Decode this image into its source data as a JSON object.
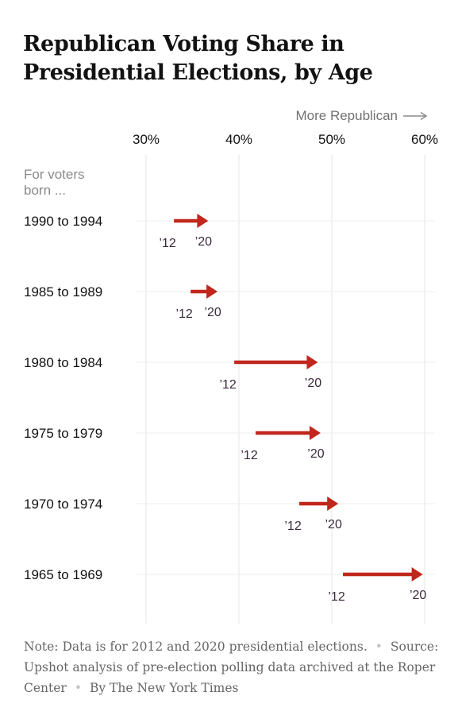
{
  "title": "Republican Voting Share in Presidential Elections, by Age",
  "direction_label": "More Republican",
  "subhead": "For voters born ...",
  "colors": {
    "arrow": "#c1271c",
    "grid": "#e6e6e6",
    "text": "#121212",
    "muted": "#727272"
  },
  "chart_data": {
    "type": "arrow",
    "x_ticks": [
      {
        "value": 30,
        "label": "30%"
      },
      {
        "value": 40,
        "label": "40%"
      },
      {
        "value": 50,
        "label": "50%"
      },
      {
        "value": 60,
        "label": "60%"
      }
    ],
    "xlim": [
      30,
      60
    ],
    "grid": true,
    "start_label": "’12",
    "end_label": "’20",
    "rows": [
      {
        "label": "1990 to 1994",
        "y2012": 33,
        "y2020": 36.7
      },
      {
        "label": "1985 to 1989",
        "y2012": 34.8,
        "y2020": 37.7
      },
      {
        "label": "1980 to 1984",
        "y2012": 39.5,
        "y2020": 48.5
      },
      {
        "label": "1975 to 1979",
        "y2012": 41.8,
        "y2020": 48.8
      },
      {
        "label": "1970 to 1974",
        "y2012": 46.5,
        "y2020": 50.7
      },
      {
        "label": "1965 to 1969",
        "y2012": 51.2,
        "y2020": 59.8
      }
    ]
  },
  "note": {
    "note_text": "Note: Data is for 2012 and 2020 presidential elections.",
    "source_text": "Source: Upshot analysis of pre-election polling data archived at the Roper Center",
    "byline": "By The New York Times"
  }
}
